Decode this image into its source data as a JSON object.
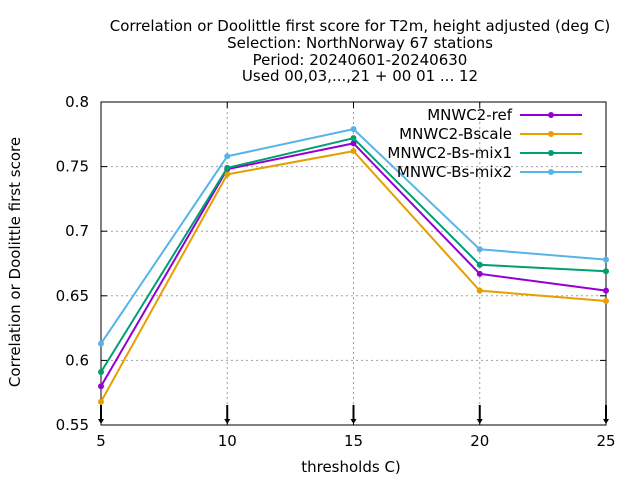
{
  "chart_data": {
    "type": "line",
    "title_lines": [
      "Correlation or Doolittle first score  for T2m, height adjusted (deg C)",
      "Selection: NorthNorway     67 stations",
      "Period: 20240601-20240630",
      "Used 00,03,...,21 + 00 01 ... 12"
    ],
    "xlabel": "thresholds C)",
    "ylabel": "Correlation or Doolittle first score",
    "x": [
      5,
      10,
      15,
      20,
      25
    ],
    "xticks": [
      "5",
      "10",
      "15",
      "20",
      "25"
    ],
    "xlim": [
      5,
      25
    ],
    "ylim": [
      0.55,
      0.8
    ],
    "yticks": [
      "0.55",
      "0.6",
      "0.65",
      "0.7",
      "0.75",
      "0.8"
    ],
    "grid": true,
    "legend_position": "top-right",
    "series": [
      {
        "name": "MNWC2-ref",
        "color": "#9400d3",
        "values": [
          0.58,
          0.748,
          0.768,
          0.667,
          0.654
        ]
      },
      {
        "name": "MNWC2-Bscale",
        "color": "#e69f00",
        "values": [
          0.568,
          0.744,
          0.762,
          0.654,
          0.646
        ]
      },
      {
        "name": "MNWC2-Bs-mix1",
        "color": "#009e73",
        "values": [
          0.591,
          0.749,
          0.772,
          0.674,
          0.669
        ]
      },
      {
        "name": "MNWC-Bs-mix2",
        "color": "#56b4e9",
        "values": [
          0.613,
          0.758,
          0.779,
          0.686,
          0.678
        ]
      }
    ]
  }
}
